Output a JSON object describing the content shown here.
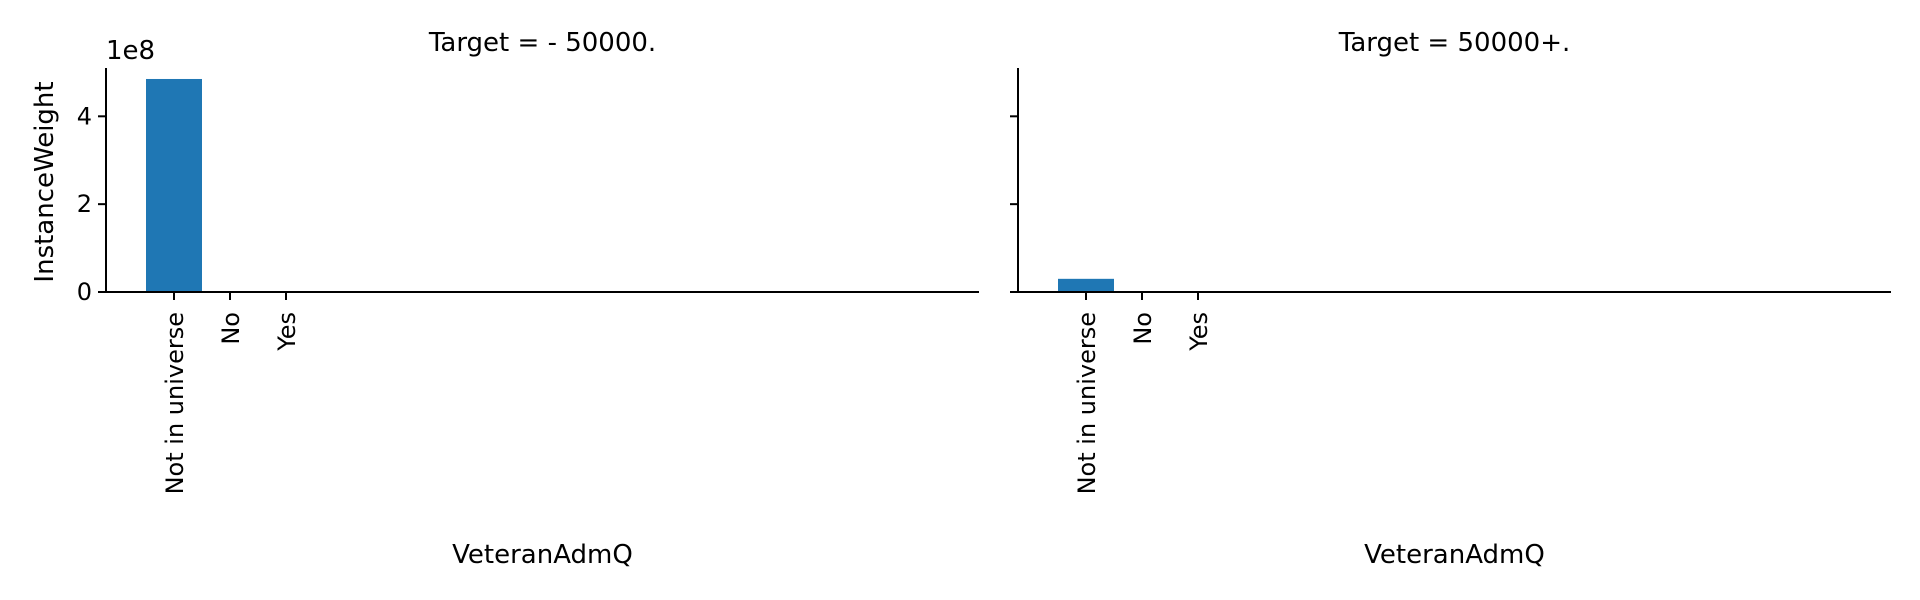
{
  "chart_data": [
    {
      "type": "bar",
      "title": "Target =  - 50000.",
      "xlabel": "VeteranAdmQ",
      "ylabel": "InstanceWeight",
      "categories": [
        "Not in universe",
        "No",
        "Yes"
      ],
      "values": [
        485000000,
        0,
        0
      ],
      "ylim": [
        0,
        510000000
      ],
      "yticks": [
        0,
        200000000,
        400000000
      ],
      "ytick_labels": [
        "0",
        "2",
        "4"
      ],
      "offset_text": "1e8",
      "color": "#1f77b4",
      "grid": false
    },
    {
      "type": "bar",
      "title": "Target =  50000+.",
      "xlabel": "VeteranAdmQ",
      "ylabel": "",
      "categories": [
        "Not in universe",
        "No",
        "Yes"
      ],
      "values": [
        30000000,
        0,
        0
      ],
      "ylim": [
        0,
        510000000
      ],
      "yticks": [
        0,
        200000000,
        400000000
      ],
      "ytick_labels": [
        "",
        "",
        ""
      ],
      "offset_text": "",
      "color": "#1f77b4",
      "grid": false
    }
  ]
}
